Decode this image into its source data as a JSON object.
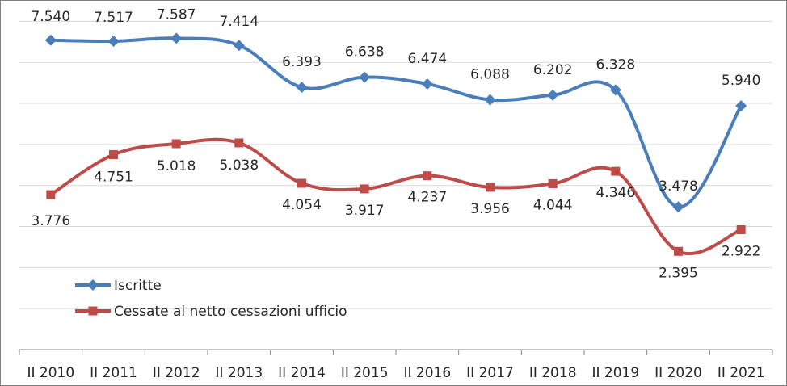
{
  "chart_data": {
    "type": "line",
    "title": "",
    "xlabel": "",
    "ylabel": "",
    "categories": [
      "II 2010",
      "II 2011",
      "II 2012",
      "II 2013",
      "II 2014",
      "II 2015",
      "II 2016",
      "II 2017",
      "II 2018",
      "II 2019",
      "II 2020",
      "II 2021"
    ],
    "ylim": [
      0,
      8500
    ],
    "grid": true,
    "legend_position": "bottom-left",
    "series": [
      {
        "name": "Iscritte",
        "color": "#4a7ebb",
        "marker": "diamond",
        "values": [
          7540,
          7517,
          7587,
          7414,
          6393,
          6638,
          6474,
          6088,
          6202,
          6328,
          3478,
          5940
        ],
        "labels": [
          "7.540",
          "7.517",
          "7.587",
          "7.414",
          "6.393",
          "6.638",
          "6.474",
          "6.088",
          "6.202",
          "6.328",
          "3.478",
          "5.940"
        ]
      },
      {
        "name": "Cessate al netto cessazioni ufficio",
        "color": "#be4b48",
        "marker": "square",
        "values": [
          3776,
          4751,
          5018,
          5038,
          4054,
          3917,
          4237,
          3956,
          4044,
          4346,
          2395,
          2922
        ],
        "labels": [
          "3.776",
          "4.751",
          "5.018",
          "5.038",
          "4.054",
          "3.917",
          "4.237",
          "3.956",
          "4.044",
          "4.346",
          "2.395",
          "2.922"
        ]
      }
    ]
  }
}
